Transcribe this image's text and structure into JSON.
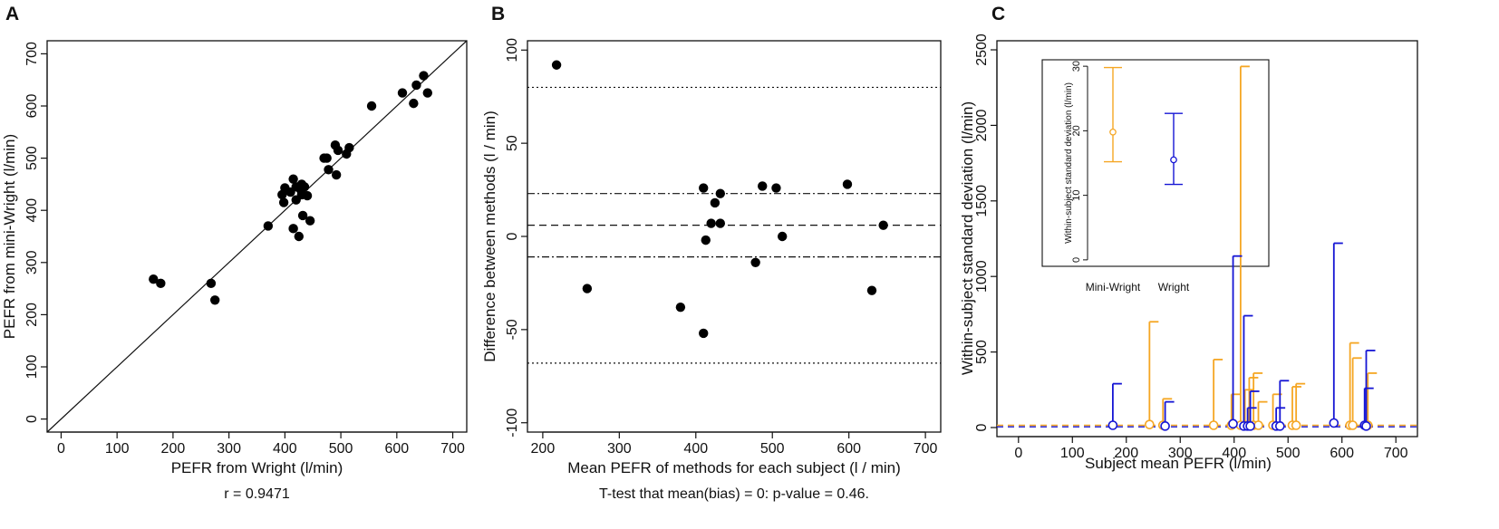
{
  "colors": {
    "mini": "#f5a623",
    "wright": "#1515d4",
    "ink": "#111111"
  },
  "chart_data": [
    {
      "panel": "A",
      "type": "scatter",
      "xlabel": "PEFR from Wright (l/min)",
      "ylabel": "PEFR from mini-Wright (l/min)",
      "caption": "r = 0.9471",
      "xlim": [
        -25,
        725
      ],
      "ylim": [
        -25,
        725
      ],
      "xticks": [
        0,
        100,
        200,
        300,
        400,
        500,
        600,
        700
      ],
      "yticks": [
        0,
        100,
        200,
        300,
        400,
        500,
        600,
        700
      ],
      "identity_line": true,
      "points": [
        [
          165,
          268
        ],
        [
          178,
          260
        ],
        [
          268,
          260
        ],
        [
          275,
          228
        ],
        [
          370,
          370
        ],
        [
          395,
          430
        ],
        [
          398,
          415
        ],
        [
          400,
          443
        ],
        [
          410,
          435
        ],
        [
          415,
          460
        ],
        [
          415,
          365
        ],
        [
          420,
          420
        ],
        [
          420,
          445
        ],
        [
          425,
          350
        ],
        [
          428,
          440
        ],
        [
          430,
          430
        ],
        [
          430,
          450
        ],
        [
          432,
          390
        ],
        [
          435,
          445
        ],
        [
          440,
          428
        ],
        [
          445,
          380
        ],
        [
          470,
          500
        ],
        [
          475,
          500
        ],
        [
          478,
          478
        ],
        [
          490,
          525
        ],
        [
          492,
          468
        ],
        [
          495,
          515
        ],
        [
          510,
          508
        ],
        [
          515,
          520
        ],
        [
          555,
          600
        ],
        [
          610,
          625
        ],
        [
          630,
          605
        ],
        [
          635,
          640
        ],
        [
          648,
          658
        ],
        [
          655,
          625
        ]
      ]
    },
    {
      "panel": "B",
      "type": "scatter",
      "xlabel": "Mean PEFR of methods for each subject (l / min)",
      "ylabel": "Difference between methods (l / min)",
      "caption": "T-test that mean(bias) = 0: p-value = 0.46.",
      "xlim": [
        180,
        720
      ],
      "ylim": [
        -105,
        105
      ],
      "xticks": [
        200,
        300,
        400,
        500,
        600,
        700
      ],
      "yticks": [
        -100,
        -50,
        0,
        50,
        100
      ],
      "ref_lines": [
        {
          "y": 80,
          "style": "dotted"
        },
        {
          "y": -68,
          "style": "dotted"
        },
        {
          "y": 23,
          "style": "dashdot"
        },
        {
          "y": -11,
          "style": "dashdot"
        },
        {
          "y": 6,
          "style": "dashed"
        }
      ],
      "points": [
        [
          218,
          92
        ],
        [
          258,
          -28
        ],
        [
          380,
          -38
        ],
        [
          410,
          26
        ],
        [
          410,
          -52
        ],
        [
          413,
          -2
        ],
        [
          420,
          7
        ],
        [
          425,
          18
        ],
        [
          432,
          23
        ],
        [
          432,
          7
        ],
        [
          478,
          -14
        ],
        [
          487,
          27
        ],
        [
          505,
          26
        ],
        [
          513,
          0
        ],
        [
          598,
          28
        ],
        [
          630,
          -29
        ],
        [
          645,
          6
        ]
      ]
    },
    {
      "panel": "C",
      "type": "errorbar",
      "xlabel": "Subject mean PEFR (l/min)",
      "ylabel": "Within-subject standard deviation (l/min)",
      "xlim": [
        -40,
        740
      ],
      "ylim": [
        -60,
        2560
      ],
      "xticks": [
        0,
        100,
        200,
        300,
        400,
        500,
        600,
        700
      ],
      "yticks": [
        0,
        500,
        1000,
        1500,
        2000,
        2500
      ],
      "mini_wright_baseline": 15,
      "wright_baseline": 5,
      "mini_wright": [
        {
          "x": 243,
          "y": 20,
          "upper": 700
        },
        {
          "x": 268,
          "y": 15,
          "upper": 190
        },
        {
          "x": 362,
          "y": 15,
          "upper": 450
        },
        {
          "x": 395,
          "y": 15,
          "upper": 220
        },
        {
          "x": 412,
          "y": 15,
          "upper": 2390
        },
        {
          "x": 420,
          "y": 15,
          "upper": 250
        },
        {
          "x": 428,
          "y": 15,
          "upper": 330
        },
        {
          "x": 436,
          "y": 15,
          "upper": 360
        },
        {
          "x": 445,
          "y": 15,
          "upper": 170
        },
        {
          "x": 472,
          "y": 15,
          "upper": 220
        },
        {
          "x": 508,
          "y": 15,
          "upper": 270
        },
        {
          "x": 515,
          "y": 15,
          "upper": 290
        },
        {
          "x": 615,
          "y": 15,
          "upper": 560
        },
        {
          "x": 620,
          "y": 15,
          "upper": 460
        },
        {
          "x": 648,
          "y": 15,
          "upper": 360
        }
      ],
      "wright": [
        {
          "x": 175,
          "y": 15,
          "upper": 290
        },
        {
          "x": 272,
          "y": 10,
          "upper": 170
        },
        {
          "x": 398,
          "y": 25,
          "upper": 1135
        },
        {
          "x": 418,
          "y": 10,
          "upper": 740
        },
        {
          "x": 425,
          "y": 10,
          "upper": 130
        },
        {
          "x": 430,
          "y": 10,
          "upper": 240
        },
        {
          "x": 478,
          "y": 10,
          "upper": 130
        },
        {
          "x": 485,
          "y": 10,
          "upper": 310
        },
        {
          "x": 585,
          "y": 30,
          "upper": 1220
        },
        {
          "x": 642,
          "y": 15,
          "upper": 260
        },
        {
          "x": 645,
          "y": 10,
          "upper": 510
        }
      ],
      "inset": {
        "ylabel": "Within-subject standard deviation (l/min)",
        "ylim": [
          -1,
          31
        ],
        "yticks": [
          0,
          10,
          20,
          30
        ],
        "groups": [
          {
            "label": "Mini-Wright",
            "mean": 19.8,
            "lower": 15.2,
            "upper": 29.8,
            "color": "#f5a623"
          },
          {
            "label": "Wright",
            "mean": 15.5,
            "lower": 11.7,
            "upper": 22.7,
            "color": "#1515d4"
          }
        ]
      }
    }
  ],
  "panel_labels": [
    "A",
    "B",
    "C"
  ]
}
